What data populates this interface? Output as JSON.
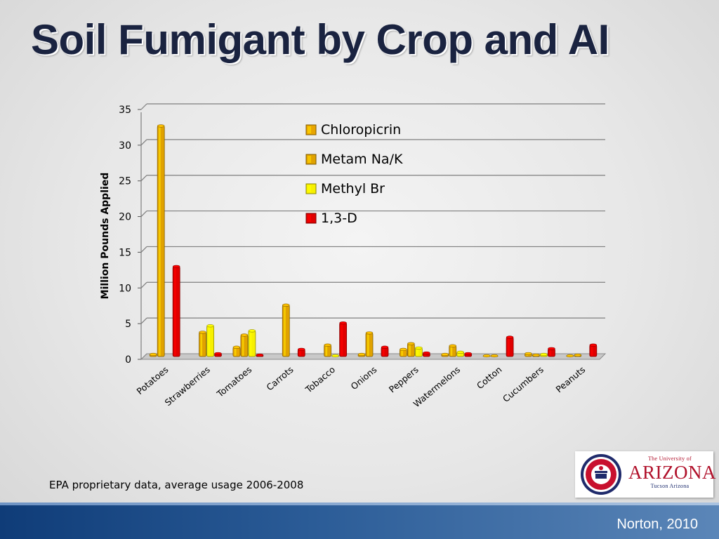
{
  "slide": {
    "title": "Soil Fumigant by Crop and AI",
    "footnote": "EPA proprietary data, average usage 2006-2008",
    "credit": "Norton, 2010",
    "logo": {
      "top": "The University of",
      "name": "ARIZONA",
      "bottom": "Tucson Arizona"
    }
  },
  "chart_data": {
    "type": "bar",
    "title": "",
    "xlabel": "",
    "ylabel": "Million Pounds Applied",
    "ylim": [
      0,
      35
    ],
    "yticks": [
      0,
      5,
      10,
      15,
      20,
      25,
      30,
      35
    ],
    "grid": true,
    "legend_position": "top-center",
    "categories": [
      "Potatoes",
      "Strawberries",
      "Tomatoes",
      "Carrots",
      "Tobacco",
      "Onions",
      "Peppers",
      "Watermelons",
      "Cotton",
      "Cucumbers",
      "Peanuts"
    ],
    "series": [
      {
        "name": "Chloropicrin",
        "color": "#e8a500",
        "values": [
          0.3,
          0.0,
          1.3,
          0.0,
          0.0,
          0.3,
          1.0,
          0.3,
          0.1,
          0.4,
          0.1
        ]
      },
      {
        "name": "Metam Na/K",
        "color": "#e0a200",
        "values": [
          32.3,
          3.4,
          3.0,
          7.2,
          1.6,
          3.3,
          1.8,
          1.5,
          0.1,
          0.2,
          0.2
        ]
      },
      {
        "name": "Methyl Br",
        "color": "#f7f000",
        "values": [
          0.0,
          4.3,
          3.6,
          0.0,
          0.1,
          0.0,
          1.2,
          0.6,
          0.0,
          0.3,
          0.0
        ]
      },
      {
        "name": "1,3-D",
        "color": "#e00000",
        "values": [
          12.6,
          0.4,
          0.2,
          1.0,
          4.7,
          1.3,
          0.5,
          0.4,
          2.7,
          1.1,
          1.6
        ]
      }
    ]
  }
}
